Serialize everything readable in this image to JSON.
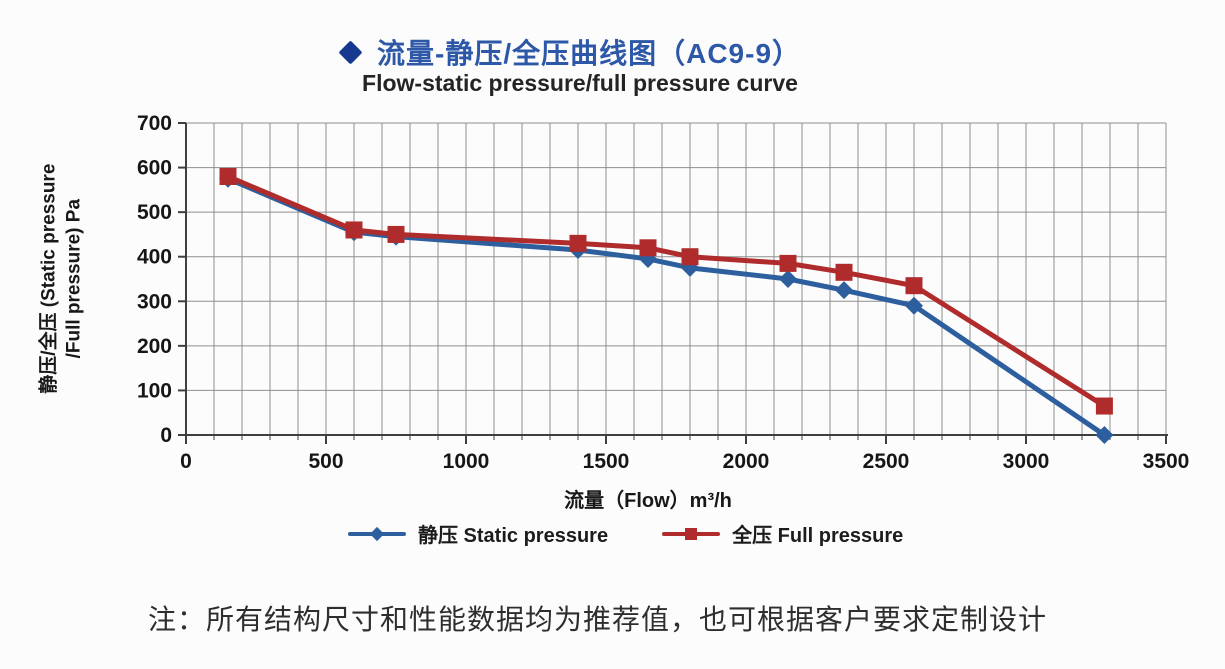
{
  "header": {
    "title_zh": "流量-静压/全压曲线图（AC9-9）",
    "title_en": "Flow-static pressure/full pressure curve",
    "bullet_icon": "diamond"
  },
  "chart_data": {
    "type": "line",
    "title": "流量-静压/全压曲线图（AC9-9）",
    "subtitle": "Flow-static pressure/full pressure curve",
    "xlabel": "流量（Flow）m³/h",
    "ylabel": "静压/全压 (Static pressure /Full pressure) Pa",
    "xlim": [
      0,
      3500
    ],
    "ylim": [
      0,
      700
    ],
    "x_ticks": [
      0,
      500,
      1000,
      1500,
      2000,
      2500,
      3000,
      3500
    ],
    "y_ticks": [
      0,
      100,
      200,
      300,
      400,
      500,
      600,
      700
    ],
    "grid": true,
    "grid_step": 100,
    "grid_color": "#8e8e8e",
    "legend_position": "bottom",
    "x": [
      150,
      600,
      750,
      1400,
      1650,
      1800,
      2150,
      2350,
      2600,
      3280
    ],
    "series": [
      {
        "name": "静压 Static pressure",
        "marker": "diamond",
        "color": "#2d5f9e",
        "values": [
          575,
          455,
          445,
          415,
          395,
          375,
          350,
          325,
          290,
          0
        ]
      },
      {
        "name": "全压 Full pressure",
        "marker": "square",
        "color": "#b02b2b",
        "values": [
          580,
          460,
          450,
          430,
          420,
          400,
          385,
          365,
          335,
          65
        ]
      }
    ]
  },
  "axis": {
    "xlabel": "流量（Flow）m³/h",
    "ylabel_line1": "静压/全压 (Static pressure",
    "ylabel_line2": "/Full pressure) Pa"
  },
  "legend": {
    "static_label": "静压 Static pressure",
    "full_label": "全压 Full pressure"
  },
  "footer": {
    "note": "注：所有结构尺寸和性能数据均为推荐值，也可根据客户要求定制设计"
  },
  "colors": {
    "title_blue": "#2d57a7",
    "bullet_blue": "#16398f",
    "static_blue": "#2d5f9e",
    "full_red": "#b02b2b",
    "grid_gray": "#8e8e8e",
    "axis_dark": "#3f3f3f"
  }
}
